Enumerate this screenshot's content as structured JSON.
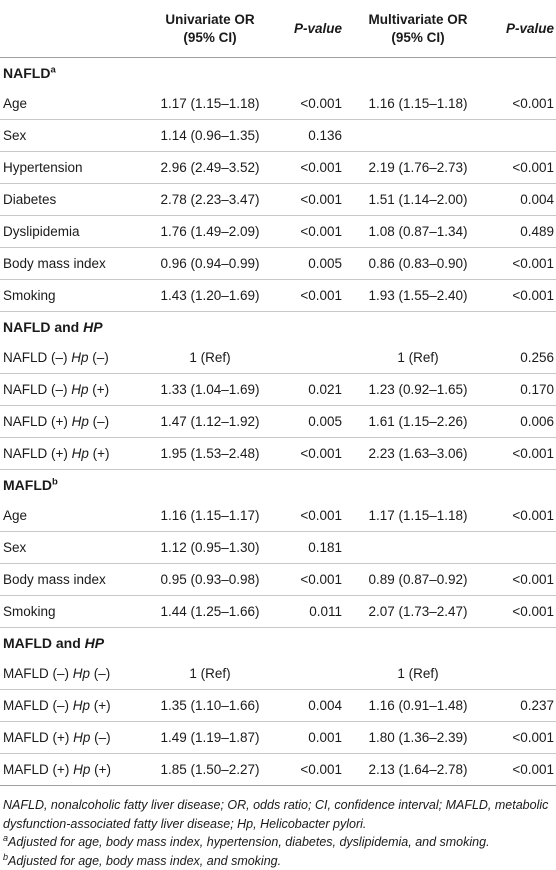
{
  "header": {
    "col1": [
      "Univariate OR",
      "(95% CI)"
    ],
    "col2": "P-value",
    "col3": [
      "Multivariate OR",
      "(95% CI)"
    ],
    "col4": "P-value"
  },
  "sections": [
    {
      "title": "NAFLD",
      "title_sup": "a",
      "title_italic_suffix": "",
      "rows": [
        {
          "label": "Age",
          "uni": "1.17 (1.15–1.18)",
          "p1": "<0.001",
          "multi": "1.16 (1.15–1.18)",
          "p2": "<0.001"
        },
        {
          "label": "Sex",
          "uni": "1.14 (0.96–1.35)",
          "p1": "0.136",
          "multi": "",
          "p2": ""
        },
        {
          "label": "Hypertension",
          "uni": "2.96 (2.49–3.52)",
          "p1": "<0.001",
          "multi": "2.19 (1.76–2.73)",
          "p2": "<0.001"
        },
        {
          "label": "Diabetes",
          "uni": "2.78 (2.23–3.47)",
          "p1": "<0.001",
          "multi": "1.51 (1.14–2.00)",
          "p2": "0.004"
        },
        {
          "label": "Dyslipidemia",
          "uni": "1.76 (1.49–2.09)",
          "p1": "<0.001",
          "multi": "1.08 (0.87–1.34)",
          "p2": "0.489"
        },
        {
          "label": "Body mass index",
          "uni": "0.96 (0.94–0.99)",
          "p1": "0.005",
          "multi": "0.86 (0.83–0.90)",
          "p2": "<0.001"
        },
        {
          "label": "Smoking",
          "uni": "1.43 (1.20–1.69)",
          "p1": "<0.001",
          "multi": "1.93 (1.55–2.40)",
          "p2": "<0.001"
        }
      ]
    },
    {
      "title": "NAFLD and ",
      "title_sup": "",
      "title_italic_suffix": "HP",
      "rows": [
        {
          "label": "NAFLD (–) ",
          "hp": "Hp",
          "label_tail": " (–)",
          "uni": "1 (Ref)",
          "p1": "",
          "multi": "1 (Ref)",
          "p2": "0.256"
        },
        {
          "label": "NAFLD (–) ",
          "hp": "Hp",
          "label_tail": " (+)",
          "uni": "1.33 (1.04–1.69)",
          "p1": "0.021",
          "multi": "1.23 (0.92–1.65)",
          "p2": "0.170"
        },
        {
          "label": "NAFLD (+) ",
          "hp": "Hp",
          "label_tail": " (–)",
          "uni": "1.47 (1.12–1.92)",
          "p1": "0.005",
          "multi": "1.61 (1.15–2.26)",
          "p2": "0.006"
        },
        {
          "label": "NAFLD (+) ",
          "hp": "Hp",
          "label_tail": " (+)",
          "uni": "1.95 (1.53–2.48)",
          "p1": "<0.001",
          "multi": "2.23 (1.63–3.06)",
          "p2": "<0.001"
        }
      ]
    },
    {
      "title": "MAFLD",
      "title_sup": "b",
      "title_italic_suffix": "",
      "rows": [
        {
          "label": "Age",
          "uni": "1.16 (1.15–1.17)",
          "p1": "<0.001",
          "multi": "1.17 (1.15–1.18)",
          "p2": "<0.001"
        },
        {
          "label": "Sex",
          "uni": "1.12 (0.95–1.30)",
          "p1": "0.181",
          "multi": "",
          "p2": ""
        },
        {
          "label": "Body mass index",
          "uni": "0.95 (0.93–0.98)",
          "p1": "<0.001",
          "multi": "0.89 (0.87–0.92)",
          "p2": "<0.001"
        },
        {
          "label": "Smoking",
          "uni": "1.44 (1.25–1.66)",
          "p1": "0.011",
          "multi": "2.07 (1.73–2.47)",
          "p2": "<0.001"
        }
      ]
    },
    {
      "title": "MAFLD and ",
      "title_sup": "",
      "title_italic_suffix": "HP",
      "rows": [
        {
          "label": "MAFLD (–) ",
          "hp": "Hp",
          "label_tail": " (–)",
          "uni": "1 (Ref)",
          "p1": "",
          "multi": "1 (Ref)",
          "p2": ""
        },
        {
          "label": "MAFLD (–) ",
          "hp": "Hp",
          "label_tail": " (+)",
          "uni": "1.35 (1.10–1.66)",
          "p1": "0.004",
          "multi": "1.16 (0.91–1.48)",
          "p2": "0.237"
        },
        {
          "label": "MAFLD (+) ",
          "hp": "Hp",
          "label_tail": " (–)",
          "uni": "1.49 (1.19–1.87)",
          "p1": "0.001",
          "multi": "1.80 (1.36–2.39)",
          "p2": "<0.001"
        },
        {
          "label": "MAFLD (+) ",
          "hp": "Hp",
          "label_tail": " (+)",
          "uni": "1.85 (1.50–2.27)",
          "p1": "<0.001",
          "multi": "2.13 (1.64–2.78)",
          "p2": "<0.001"
        }
      ]
    }
  ],
  "footnotes": {
    "abbrev": "NAFLD, nonalcoholic fatty liver disease; OR, odds ratio; CI, confidence interval; MAFLD, metabolic dysfunction-associated fatty liver disease; Hp, Helicobacter pylori.",
    "a_mark": "a",
    "a_text": "Adjusted for age, body mass index, hypertension, diabetes, dyslipidemia, and smoking.",
    "b_mark": "b",
    "b_text": "Adjusted for age, body mass index, and smoking."
  }
}
